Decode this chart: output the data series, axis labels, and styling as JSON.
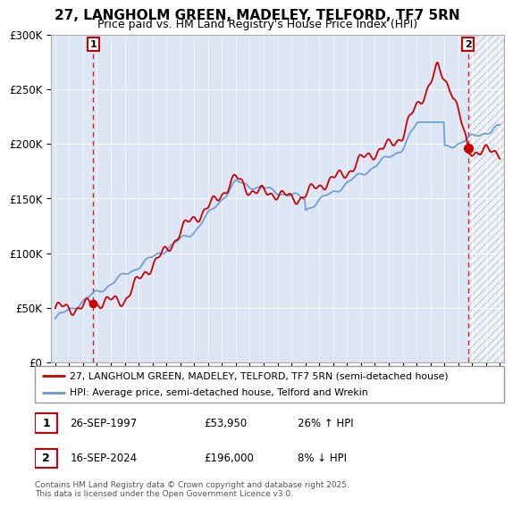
{
  "title": "27, LANGHOLM GREEN, MADELEY, TELFORD, TF7 5RN",
  "subtitle": "Price paid vs. HM Land Registry's House Price Index (HPI)",
  "legend_line1": "27, LANGHOLM GREEN, MADELEY, TELFORD, TF7 5RN (semi-detached house)",
  "legend_line2": "HPI: Average price, semi-detached house, Telford and Wrekin",
  "annotation1_label": "1",
  "annotation1_date": "26-SEP-1997",
  "annotation1_price": "£53,950",
  "annotation1_hpi": "26% ↑ HPI",
  "annotation2_label": "2",
  "annotation2_date": "16-SEP-2024",
  "annotation2_price": "£196,000",
  "annotation2_hpi": "8% ↓ HPI",
  "footer": "Contains HM Land Registry data © Crown copyright and database right 2025.\nThis data is licensed under the Open Government Licence v3.0.",
  "red_color": "#cc0000",
  "blue_color": "#6699cc",
  "chart_bg": "#dce6f5",
  "hatch_bg": "#cccccc",
  "grid_color": "#ffffff",
  "annotation_box_color": "#cc0000",
  "ylim_min": 0,
  "ylim_max": 300000,
  "xmin": 1995,
  "xmax": 2027,
  "sale1_year": 1997.73,
  "sale1_price": 53950,
  "sale2_year": 2024.71,
  "sale2_price": 196000
}
